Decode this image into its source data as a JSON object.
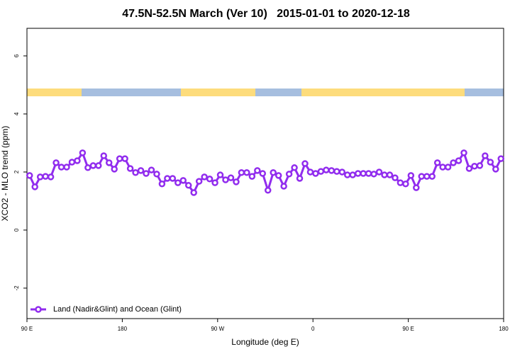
{
  "chart_data": {
    "type": "line",
    "title": "47.5N-52.5N March (Ver 10)   2015-01-01 to 2020-12-18",
    "xlabel": "Longitude (deg E)",
    "ylabel": "XCO2 - MLO trend (ppm)",
    "xlim": [
      90,
      540
    ],
    "ylim": [
      -3.05,
      6.95
    ],
    "xticks": [
      {
        "value": 90,
        "label": "90 E"
      },
      180,
      {
        "value": 270,
        "label": "90 W"
      },
      {
        "value": 360,
        "label": "0"
      },
      {
        "value": 450,
        "label": "90 E"
      },
      {
        "value": 540,
        "label": "180"
      }
    ],
    "yticks": [
      -2,
      0,
      2,
      4,
      6
    ],
    "legend": "bottomleft",
    "x": [
      92.5,
      97.5,
      102.5,
      107.5,
      112.5,
      117.5,
      122.5,
      127.5,
      132.5,
      137.5,
      142.5,
      147.5,
      152.5,
      157.5,
      162.5,
      167.5,
      172.5,
      177.5,
      182.5,
      187.5,
      192.5,
      197.5,
      202.5,
      207.5,
      212.5,
      217.5,
      222.5,
      227.5,
      232.5,
      237.5,
      242.5,
      247.5,
      252.5,
      257.5,
      262.5,
      267.5,
      272.5,
      277.5,
      282.5,
      287.5,
      292.5,
      297.5,
      302.5,
      307.5,
      312.5,
      317.5,
      322.5,
      327.5,
      332.5,
      337.5,
      342.5,
      347.5,
      352.5,
      357.5,
      362.5,
      367.5,
      372.5,
      377.5,
      382.5,
      387.5,
      392.5,
      397.5,
      402.5,
      407.5,
      412.5,
      417.5,
      422.5,
      427.5,
      432.5,
      437.5,
      442.5,
      447.5,
      452.5,
      457.5,
      462.5,
      467.5,
      472.5,
      477.5,
      482.5,
      487.5,
      492.5,
      497.5,
      502.5,
      507.5,
      512.5,
      517.5,
      522.5,
      527.5,
      532.5,
      537.5
    ],
    "series": [
      {
        "name": "Land (Nadir&Glint) and Ocean (Glint)",
        "color": "#912cee",
        "values": [
          1.88,
          1.49,
          1.83,
          1.85,
          1.83,
          2.32,
          2.17,
          2.17,
          2.34,
          2.39,
          2.66,
          2.15,
          2.22,
          2.22,
          2.56,
          2.32,
          2.1,
          2.46,
          2.46,
          2.12,
          1.98,
          2.05,
          1.95,
          2.07,
          1.93,
          1.59,
          1.78,
          1.78,
          1.63,
          1.71,
          1.54,
          1.29,
          1.68,
          1.83,
          1.76,
          1.63,
          1.9,
          1.73,
          1.8,
          1.66,
          1.98,
          1.98,
          1.85,
          2.05,
          1.95,
          1.37,
          1.98,
          1.88,
          1.51,
          1.93,
          2.15,
          1.78,
          2.29,
          2.0,
          1.95,
          2.02,
          2.07,
          2.05,
          2.02,
          2.0,
          1.9,
          1.9,
          1.95,
          1.95,
          1.95,
          1.93,
          2.0,
          1.9,
          1.9,
          1.8,
          1.63,
          1.59,
          1.88,
          1.46,
          1.85,
          1.85,
          1.85,
          2.32,
          2.17,
          2.17,
          2.32,
          2.39,
          2.66,
          2.12,
          2.2,
          2.22,
          2.56,
          2.34,
          2.1,
          2.46
        ]
      }
    ]
  }
}
